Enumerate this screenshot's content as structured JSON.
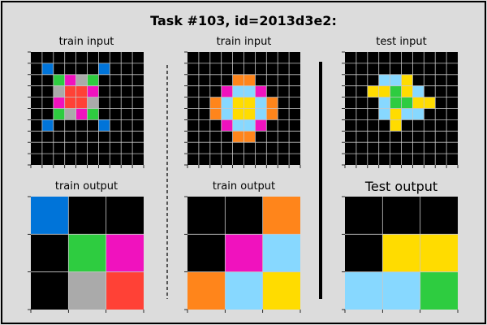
{
  "title": "Task #103, id=2013d3e2:",
  "panels": [
    {
      "title": "train input",
      "cells": [
        [
          0,
          0,
          0,
          0,
          0,
          0,
          0,
          0,
          0,
          0
        ],
        [
          0,
          1,
          0,
          0,
          0,
          0,
          1,
          0,
          0,
          0
        ],
        [
          0,
          0,
          3,
          6,
          5,
          3,
          0,
          0,
          0,
          0
        ],
        [
          0,
          0,
          5,
          2,
          2,
          6,
          0,
          0,
          0,
          0
        ],
        [
          0,
          0,
          6,
          2,
          2,
          5,
          0,
          0,
          0,
          0
        ],
        [
          0,
          0,
          3,
          5,
          6,
          3,
          0,
          0,
          0,
          0
        ],
        [
          0,
          1,
          0,
          0,
          0,
          0,
          1,
          0,
          0,
          0
        ],
        [
          0,
          0,
          0,
          0,
          0,
          0,
          0,
          0,
          0,
          0
        ],
        [
          0,
          0,
          0,
          0,
          0,
          0,
          0,
          0,
          0,
          0
        ],
        [
          0,
          0,
          0,
          0,
          0,
          0,
          0,
          0,
          0,
          0
        ]
      ]
    },
    {
      "title": "train input",
      "cells": [
        [
          0,
          0,
          0,
          0,
          0,
          0,
          0,
          0,
          0,
          0
        ],
        [
          0,
          0,
          0,
          0,
          0,
          0,
          0,
          0,
          0,
          0
        ],
        [
          0,
          0,
          0,
          0,
          7,
          7,
          0,
          0,
          0,
          0
        ],
        [
          0,
          0,
          0,
          6,
          4,
          4,
          6,
          0,
          0,
          0
        ],
        [
          0,
          0,
          7,
          4,
          8,
          8,
          4,
          7,
          0,
          0
        ],
        [
          0,
          0,
          7,
          4,
          8,
          8,
          4,
          7,
          0,
          0
        ],
        [
          0,
          0,
          0,
          6,
          4,
          4,
          6,
          0,
          0,
          0
        ],
        [
          0,
          0,
          0,
          0,
          7,
          7,
          0,
          0,
          0,
          0
        ],
        [
          0,
          0,
          0,
          0,
          0,
          0,
          0,
          0,
          0,
          0
        ],
        [
          0,
          0,
          0,
          0,
          0,
          0,
          0,
          0,
          0,
          0
        ]
      ]
    },
    {
      "title": "test input",
      "cells": [
        [
          0,
          0,
          0,
          0,
          0,
          0,
          0,
          0,
          0,
          0
        ],
        [
          0,
          0,
          0,
          0,
          0,
          0,
          0,
          0,
          0,
          0
        ],
        [
          0,
          0,
          0,
          4,
          4,
          8,
          0,
          0,
          0,
          0
        ],
        [
          0,
          0,
          8,
          8,
          3,
          8,
          4,
          0,
          0,
          0
        ],
        [
          0,
          0,
          0,
          4,
          3,
          3,
          8,
          8,
          0,
          0
        ],
        [
          0,
          0,
          0,
          4,
          8,
          4,
          4,
          0,
          0,
          0
        ],
        [
          0,
          0,
          0,
          0,
          8,
          0,
          0,
          0,
          0,
          0
        ],
        [
          0,
          0,
          0,
          0,
          0,
          0,
          0,
          0,
          0,
          0
        ],
        [
          0,
          0,
          0,
          0,
          0,
          0,
          0,
          0,
          0,
          0
        ],
        [
          0,
          0,
          0,
          0,
          0,
          0,
          0,
          0,
          0,
          0
        ]
      ]
    },
    {
      "title": "train output",
      "cells": [
        [
          1,
          0,
          0
        ],
        [
          0,
          3,
          6
        ],
        [
          0,
          5,
          2
        ]
      ]
    },
    {
      "title": "train output",
      "cells": [
        [
          0,
          0,
          7
        ],
        [
          0,
          6,
          4
        ],
        [
          7,
          4,
          8
        ]
      ]
    },
    {
      "title": "Test output",
      "cells": [
        [
          0,
          0,
          0
        ],
        [
          0,
          8,
          8
        ],
        [
          4,
          4,
          3
        ]
      ]
    }
  ],
  "palette": {
    "0": "#000000",
    "1": "#0074d9",
    "2": "#ff4136",
    "3": "#2ecc40",
    "4": "#87d8ff",
    "5": "#aaaaaa",
    "6": "#f012be",
    "7": "#ff851b",
    "8": "#ffdc00"
  }
}
